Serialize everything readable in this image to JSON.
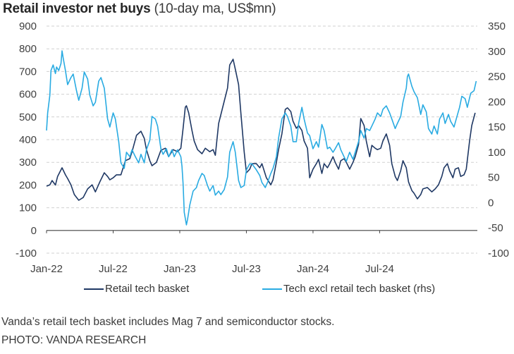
{
  "header": {
    "title_bold": "Retail investor net buys",
    "title_rest": " (10-day ma, US$mn)"
  },
  "caption": "Vanda’s retail tech basket includes Mag 7 and semiconductor stocks.",
  "credit": "PHOTO: VANDA RESEARCH",
  "chart_data": {
    "type": "line",
    "title": "Retail investor net buys (10-day ma, US$mn)",
    "xlabel": "",
    "x_unit": "months since Jan-2022",
    "x_range": [
      0,
      38.8
    ],
    "x_ticks": [
      {
        "x": 0,
        "label": "Jan-22"
      },
      {
        "x": 6,
        "label": "Jul-22"
      },
      {
        "x": 12,
        "label": "Jan-23"
      },
      {
        "x": 18,
        "label": "Jul-23"
      },
      {
        "x": 24,
        "label": "Jan-24"
      },
      {
        "x": 30,
        "label": "Jul-24"
      }
    ],
    "y_left": {
      "label": "",
      "range": [
        -100,
        900
      ],
      "ticks": [
        900,
        800,
        700,
        600,
        500,
        400,
        300,
        200,
        100,
        0,
        -100
      ]
    },
    "y_right": {
      "label": "",
      "range": [
        -100,
        350
      ],
      "ticks": [
        350,
        300,
        250,
        200,
        150,
        100,
        50,
        0,
        -50,
        -100
      ]
    },
    "grid": true,
    "legend_position": "bottom",
    "series": [
      {
        "name": "Retail tech basket",
        "axis": "left",
        "color": "#1f3864",
        "points": [
          [
            0.0,
            195
          ],
          [
            0.3,
            201
          ],
          [
            0.5,
            220
          ],
          [
            0.8,
            200
          ],
          [
            1.0,
            238
          ],
          [
            1.4,
            276
          ],
          [
            1.7,
            245
          ],
          [
            1.9,
            229
          ],
          [
            2.2,
            201
          ],
          [
            2.5,
            158
          ],
          [
            2.9,
            133
          ],
          [
            3.3,
            145
          ],
          [
            3.7,
            183
          ],
          [
            4.1,
            201
          ],
          [
            4.4,
            170
          ],
          [
            4.8,
            214
          ],
          [
            5.2,
            254
          ],
          [
            5.5,
            238
          ],
          [
            5.7,
            223
          ],
          [
            6.0,
            232
          ],
          [
            6.3,
            245
          ],
          [
            6.7,
            245
          ],
          [
            7.1,
            307
          ],
          [
            7.5,
            316
          ],
          [
            7.7,
            347
          ],
          [
            8.1,
            419
          ],
          [
            8.5,
            437
          ],
          [
            8.8,
            406
          ],
          [
            9.0,
            356
          ],
          [
            9.3,
            307
          ],
          [
            9.5,
            285
          ],
          [
            9.9,
            300
          ],
          [
            10.3,
            353
          ],
          [
            10.7,
            362
          ],
          [
            11.0,
            325
          ],
          [
            11.4,
            356
          ],
          [
            11.8,
            347
          ],
          [
            12.1,
            362
          ],
          [
            12.3,
            450
          ],
          [
            12.5,
            543
          ],
          [
            12.6,
            549
          ],
          [
            12.8,
            518
          ],
          [
            13.1,
            440
          ],
          [
            13.3,
            394
          ],
          [
            13.6,
            356
          ],
          [
            14.0,
            338
          ],
          [
            14.3,
            362
          ],
          [
            14.7,
            347
          ],
          [
            15.0,
            356
          ],
          [
            15.2,
            331
          ],
          [
            15.5,
            471
          ],
          [
            15.9,
            549
          ],
          [
            16.3,
            627
          ],
          [
            16.5,
            729
          ],
          [
            16.8,
            754
          ],
          [
            17.0,
            711
          ],
          [
            17.3,
            642
          ],
          [
            17.5,
            518
          ],
          [
            17.8,
            347
          ],
          [
            18.0,
            254
          ],
          [
            18.3,
            270
          ],
          [
            18.5,
            294
          ],
          [
            18.9,
            294
          ],
          [
            19.2,
            276
          ],
          [
            19.4,
            294
          ],
          [
            19.8,
            232
          ],
          [
            20.2,
            201
          ],
          [
            20.4,
            223
          ],
          [
            20.7,
            300
          ],
          [
            20.9,
            356
          ],
          [
            21.2,
            425
          ],
          [
            21.5,
            533
          ],
          [
            21.7,
            540
          ],
          [
            22.0,
            524
          ],
          [
            22.2,
            481
          ],
          [
            22.5,
            450
          ],
          [
            22.7,
            462
          ],
          [
            23.0,
            440
          ],
          [
            23.2,
            394
          ],
          [
            23.5,
            362
          ],
          [
            23.7,
            232
          ],
          [
            24.0,
            270
          ],
          [
            24.3,
            294
          ],
          [
            24.5,
            313
          ],
          [
            24.8,
            251
          ],
          [
            25.0,
            294
          ],
          [
            25.3,
            276
          ],
          [
            25.5,
            294
          ],
          [
            25.8,
            325
          ],
          [
            26.0,
            300
          ],
          [
            26.3,
            270
          ],
          [
            26.5,
            307
          ],
          [
            26.8,
            316
          ],
          [
            27.0,
            300
          ],
          [
            27.3,
            270
          ],
          [
            27.6,
            300
          ],
          [
            27.8,
            325
          ],
          [
            28.1,
            378
          ],
          [
            28.3,
            493
          ],
          [
            28.6,
            462
          ],
          [
            28.8,
            394
          ],
          [
            29.1,
            325
          ],
          [
            29.3,
            375
          ],
          [
            29.6,
            362
          ],
          [
            29.8,
            356
          ],
          [
            30.1,
            362
          ],
          [
            30.3,
            394
          ],
          [
            30.6,
            425
          ],
          [
            30.9,
            375
          ],
          [
            31.1,
            294
          ],
          [
            31.4,
            238
          ],
          [
            31.6,
            220
          ],
          [
            31.9,
            263
          ],
          [
            32.1,
            307
          ],
          [
            32.4,
            276
          ],
          [
            32.6,
            214
          ],
          [
            32.9,
            176
          ],
          [
            33.1,
            164
          ],
          [
            33.4,
            139
          ],
          [
            33.7,
            158
          ],
          [
            33.9,
            183
          ],
          [
            34.3,
            189
          ],
          [
            34.7,
            170
          ],
          [
            35.0,
            183
          ],
          [
            35.3,
            201
          ],
          [
            35.6,
            238
          ],
          [
            35.8,
            276
          ],
          [
            36.1,
            294
          ],
          [
            36.3,
            263
          ],
          [
            36.6,
            232
          ],
          [
            36.8,
            270
          ],
          [
            37.1,
            276
          ],
          [
            37.3,
            238
          ],
          [
            37.6,
            245
          ],
          [
            37.8,
            270
          ],
          [
            38.1,
            394
          ],
          [
            38.3,
            462
          ],
          [
            38.6,
            518
          ]
        ]
      },
      {
        "name": "Tech excl retail tech basket (rhs)",
        "axis": "right",
        "color": "#29abe2",
        "points": [
          [
            0.0,
            143
          ],
          [
            0.1,
            178
          ],
          [
            0.3,
            213
          ],
          [
            0.4,
            262
          ],
          [
            0.6,
            273
          ],
          [
            0.8,
            256
          ],
          [
            0.9,
            269
          ],
          [
            1.1,
            262
          ],
          [
            1.3,
            276
          ],
          [
            1.4,
            301
          ],
          [
            1.5,
            287
          ],
          [
            1.7,
            262
          ],
          [
            1.9,
            234
          ],
          [
            2.2,
            248
          ],
          [
            2.4,
            255
          ],
          [
            2.7,
            222
          ],
          [
            2.9,
            203
          ],
          [
            3.2,
            227
          ],
          [
            3.4,
            259
          ],
          [
            3.7,
            245
          ],
          [
            3.9,
            213
          ],
          [
            4.2,
            192
          ],
          [
            4.4,
            199
          ],
          [
            4.7,
            241
          ],
          [
            4.9,
            248
          ],
          [
            5.2,
            227
          ],
          [
            5.5,
            166
          ],
          [
            5.7,
            150
          ],
          [
            6.0,
            178
          ],
          [
            6.2,
            166
          ],
          [
            6.5,
            121
          ],
          [
            6.7,
            79
          ],
          [
            7.0,
            68
          ],
          [
            7.2,
            100
          ],
          [
            7.5,
            91
          ],
          [
            7.7,
            105
          ],
          [
            8.0,
            91
          ],
          [
            8.3,
            79
          ],
          [
            8.5,
            96
          ],
          [
            8.8,
            79
          ],
          [
            9.0,
            105
          ],
          [
            9.3,
            124
          ],
          [
            9.5,
            171
          ],
          [
            9.8,
            166
          ],
          [
            10.0,
            152
          ],
          [
            10.3,
            107
          ],
          [
            10.5,
            96
          ],
          [
            10.8,
            107
          ],
          [
            11.0,
            91
          ],
          [
            11.3,
            105
          ],
          [
            11.5,
            91
          ],
          [
            11.8,
            105
          ],
          [
            12.1,
            91
          ],
          [
            12.2,
            72
          ],
          [
            12.3,
            37
          ],
          [
            12.4,
            -19
          ],
          [
            12.6,
            -44
          ],
          [
            12.7,
            -33
          ],
          [
            12.8,
            -19
          ],
          [
            12.9,
            -5
          ],
          [
            13.2,
            23
          ],
          [
            13.5,
            30
          ],
          [
            13.7,
            44
          ],
          [
            14.0,
            58
          ],
          [
            14.2,
            54
          ],
          [
            14.5,
            34
          ],
          [
            14.7,
            23
          ],
          [
            15.0,
            34
          ],
          [
            15.2,
            15
          ],
          [
            15.5,
            23
          ],
          [
            15.7,
            16
          ],
          [
            16.0,
            26
          ],
          [
            16.3,
            51
          ],
          [
            16.5,
            100
          ],
          [
            16.8,
            121
          ],
          [
            17.0,
            100
          ],
          [
            17.3,
            44
          ],
          [
            17.5,
            30
          ],
          [
            17.8,
            34
          ],
          [
            18.0,
            65
          ],
          [
            18.3,
            77
          ],
          [
            18.5,
            77
          ],
          [
            18.9,
            65
          ],
          [
            19.2,
            54
          ],
          [
            19.4,
            40
          ],
          [
            19.7,
            30
          ],
          [
            19.9,
            40
          ],
          [
            20.2,
            58
          ],
          [
            20.4,
            68
          ],
          [
            20.7,
            91
          ],
          [
            20.9,
            128
          ],
          [
            21.2,
            166
          ],
          [
            21.5,
            178
          ],
          [
            21.7,
            171
          ],
          [
            22.0,
            152
          ],
          [
            22.2,
            121
          ],
          [
            22.5,
            121
          ],
          [
            22.7,
            157
          ],
          [
            23.0,
            189
          ],
          [
            23.2,
            166
          ],
          [
            23.5,
            138
          ],
          [
            23.7,
            133
          ],
          [
            24.0,
            107
          ],
          [
            24.3,
            121
          ],
          [
            24.5,
            110
          ],
          [
            24.8,
            155
          ],
          [
            25.0,
            143
          ],
          [
            25.3,
            107
          ],
          [
            25.5,
            110
          ],
          [
            25.8,
            100
          ],
          [
            26.0,
            107
          ],
          [
            26.3,
            119
          ],
          [
            26.5,
            105
          ],
          [
            26.8,
            91
          ],
          [
            27.0,
            82
          ],
          [
            27.3,
            100
          ],
          [
            27.6,
            86
          ],
          [
            27.8,
            100
          ],
          [
            28.1,
            121
          ],
          [
            28.3,
            143
          ],
          [
            28.6,
            128
          ],
          [
            28.8,
            147
          ],
          [
            29.1,
            143
          ],
          [
            29.3,
            152
          ],
          [
            29.6,
            166
          ],
          [
            29.8,
            178
          ],
          [
            30.1,
            171
          ],
          [
            30.3,
            185
          ],
          [
            30.6,
            192
          ],
          [
            30.9,
            178
          ],
          [
            31.1,
            166
          ],
          [
            31.4,
            147
          ],
          [
            31.6,
            157
          ],
          [
            31.9,
            171
          ],
          [
            32.1,
            199
          ],
          [
            32.4,
            227
          ],
          [
            32.5,
            250
          ],
          [
            32.6,
            255
          ],
          [
            32.9,
            231
          ],
          [
            33.1,
            220
          ],
          [
            33.4,
            208
          ],
          [
            33.7,
            175
          ],
          [
            33.9,
            194
          ],
          [
            34.2,
            180
          ],
          [
            34.4,
            147
          ],
          [
            34.7,
            136
          ],
          [
            34.9,
            152
          ],
          [
            35.2,
            136
          ],
          [
            35.4,
            166
          ],
          [
            35.7,
            178
          ],
          [
            35.9,
            157
          ],
          [
            36.2,
            175
          ],
          [
            36.4,
            161
          ],
          [
            36.7,
            150
          ],
          [
            36.9,
            166
          ],
          [
            37.2,
            189
          ],
          [
            37.4,
            211
          ],
          [
            37.7,
            206
          ],
          [
            37.9,
            189
          ],
          [
            38.2,
            217
          ],
          [
            38.5,
            222
          ],
          [
            38.7,
            241
          ]
        ]
      }
    ]
  }
}
